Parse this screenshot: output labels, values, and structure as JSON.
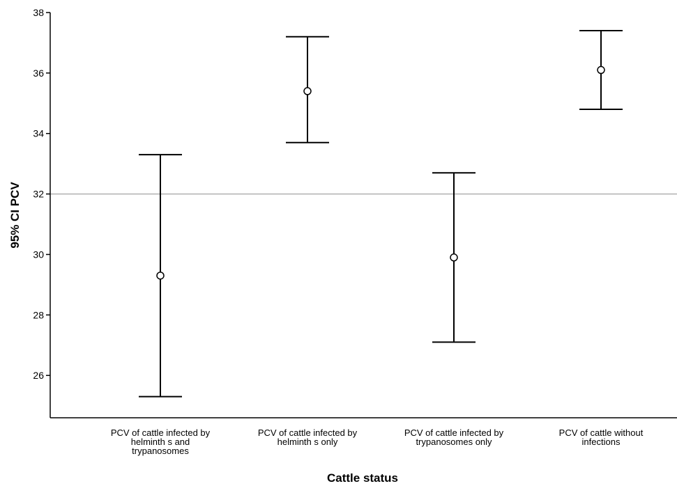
{
  "chart_data": {
    "type": "errorbar",
    "xlabel": "Cattle status",
    "ylabel": "95% CI PCV",
    "ylim": [
      24.6,
      38
    ],
    "yticks": [
      26,
      28,
      30,
      32,
      34,
      36,
      38
    ],
    "reference_line": 32,
    "categories": [
      [
        "PCV of cattle infected by",
        "helminth s  and",
        "trypanosomes"
      ],
      [
        "PCV of cattle infected by",
        "helminth s  only"
      ],
      [
        "PCV of cattle infected by",
        "trypanosomes only"
      ],
      [
        "PCV of cattle without",
        "infections"
      ]
    ],
    "points": [
      {
        "mean": 29.3,
        "lower": 25.3,
        "upper": 33.3
      },
      {
        "mean": 35.4,
        "lower": 33.7,
        "upper": 37.2
      },
      {
        "mean": 29.9,
        "lower": 27.1,
        "upper": 32.7
      },
      {
        "mean": 36.1,
        "lower": 34.8,
        "upper": 37.4
      }
    ],
    "colors": {
      "bars": "#000000",
      "reference_line": "#b0b0b0"
    }
  }
}
